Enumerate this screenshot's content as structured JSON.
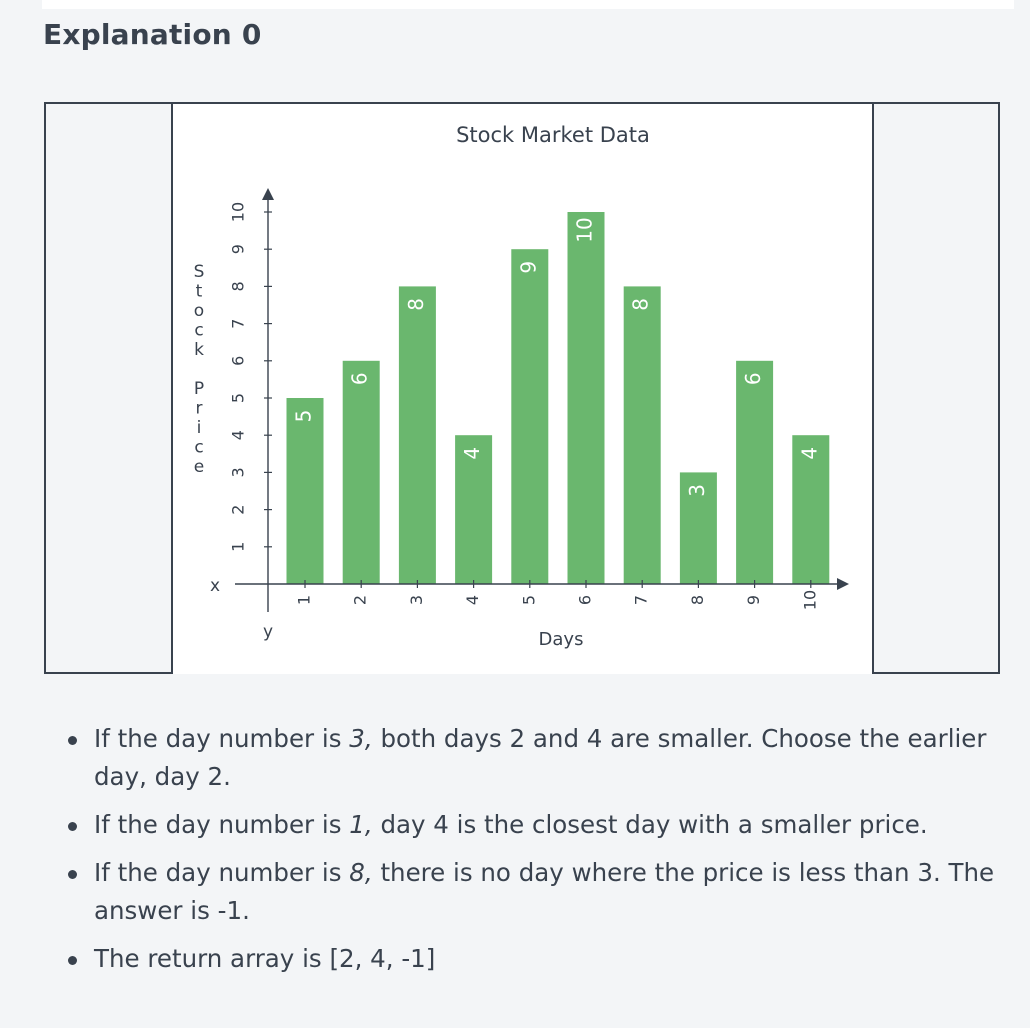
{
  "section": {
    "heading": "Explanation 0"
  },
  "chart_data": {
    "type": "bar",
    "title": "Stock Market Data",
    "xlabel": "Days",
    "ylabel": "Stock Price",
    "categories": [
      "1",
      "2",
      "3",
      "4",
      "5",
      "6",
      "7",
      "8",
      "9",
      "10"
    ],
    "values": [
      5,
      6,
      8,
      4,
      9,
      10,
      8,
      3,
      6,
      4
    ],
    "data_labels": [
      "5",
      "6",
      "8",
      "4",
      "9",
      "10",
      "8",
      "3",
      "6",
      "4"
    ],
    "ylim": [
      0,
      10
    ],
    "y_ticks": [
      "1",
      "2",
      "3",
      "4",
      "5",
      "6",
      "7",
      "8",
      "9",
      "10"
    ],
    "x_axis_end_label": "x",
    "y_axis_end_label": "y",
    "bar_color": "#6ab76e",
    "grid": false
  },
  "explanation": {
    "items": [
      {
        "parts": [
          {
            "t": "If the day number is "
          },
          {
            "t": "3,",
            "em": true
          },
          {
            "t": " both days 2 and 4 are smaller.  Choose the earlier day, day 2."
          }
        ]
      },
      {
        "parts": [
          {
            "t": "If the day number is "
          },
          {
            "t": "1,",
            "em": true
          },
          {
            "t": " day 4 is the closest day with a smaller price."
          }
        ]
      },
      {
        "parts": [
          {
            "t": "If the day number is "
          },
          {
            "t": "8,",
            "em": true
          },
          {
            "t": " there is no day where the price is less than 3. The answer is -1."
          }
        ]
      },
      {
        "parts": [
          {
            "t": "The return array is [2, 4, -1]"
          }
        ]
      }
    ]
  }
}
